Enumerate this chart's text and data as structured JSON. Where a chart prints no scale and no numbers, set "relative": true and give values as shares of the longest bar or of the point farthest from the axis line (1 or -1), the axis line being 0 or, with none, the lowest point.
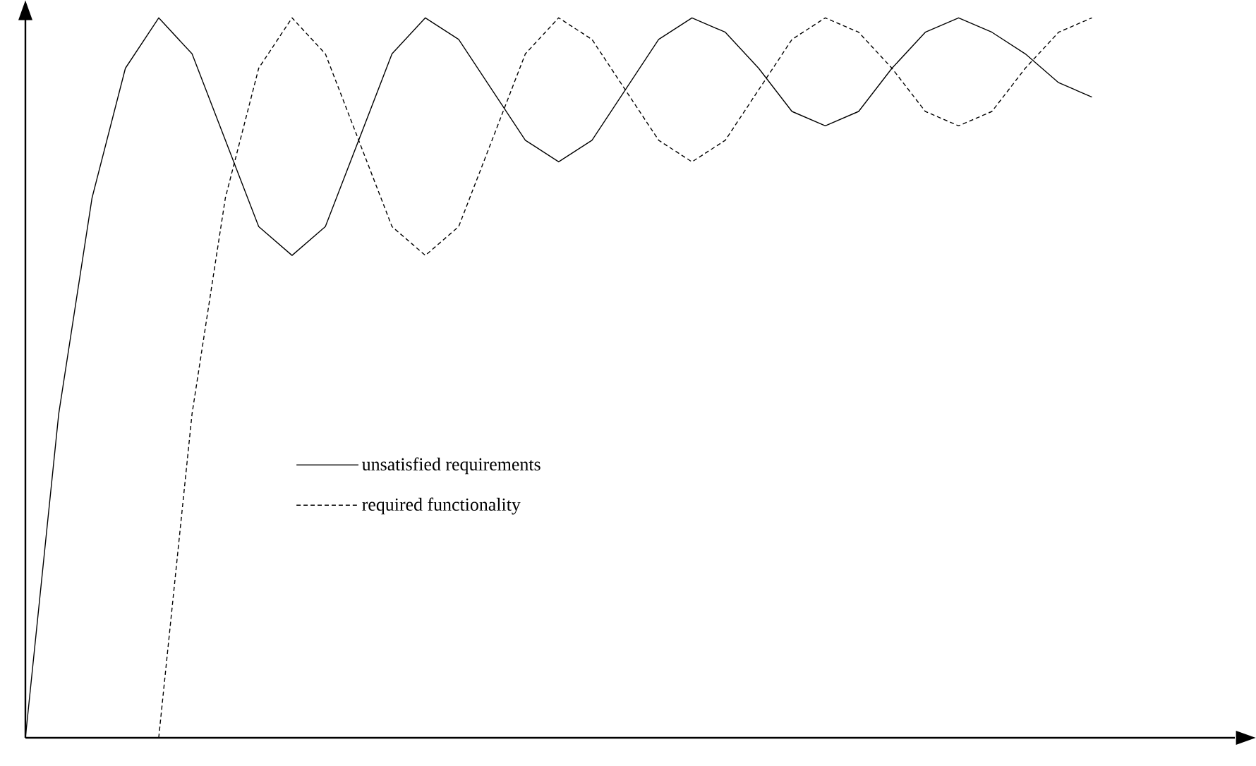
{
  "chart_data": {
    "type": "line",
    "relative": true,
    "legend": "bottom",
    "marker": "none",
    "categories": [
      null,
      null,
      null,
      null,
      null,
      null,
      null,
      null,
      null,
      null,
      null,
      null,
      null,
      null,
      null,
      null,
      null,
      null,
      null,
      null,
      null,
      null,
      null,
      null,
      null,
      null,
      null,
      null,
      null,
      null,
      null,
      null,
      null
    ],
    "series": [
      {
        "name": "unsatisfied requirements",
        "color": "#000000",
        "line_style": "solid",
        "values": [
          0,
          0.45,
          0.75,
          0.93,
          1,
          0.95,
          0.83,
          0.71,
          0.67,
          0.71,
          0.83,
          0.95,
          1,
          0.97,
          0.9,
          0.83,
          0.8,
          0.83,
          0.9,
          0.97,
          1,
          0.98,
          0.93,
          0.87,
          0.85,
          0.87,
          0.93,
          0.98,
          1,
          0.98,
          0.95,
          0.91,
          0.89
        ]
      },
      {
        "name": "required functionality",
        "color": "#000000",
        "line_style": "dashed",
        "values": [
          null,
          null,
          null,
          null,
          0,
          0.45,
          0.75,
          0.93,
          1,
          0.95,
          0.83,
          0.71,
          0.67,
          0.71,
          0.83,
          0.95,
          1,
          0.97,
          0.9,
          0.83,
          0.8,
          0.83,
          0.9,
          0.97,
          1,
          0.98,
          0.93,
          0.87,
          0.85,
          0.87,
          0.93,
          0.98,
          1
        ]
      }
    ]
  }
}
